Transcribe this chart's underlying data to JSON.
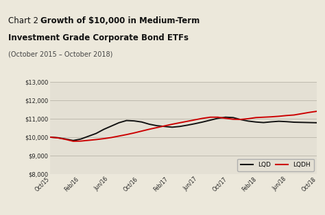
{
  "background_color": "#ece8db",
  "plot_bg_color": "#e4e0d4",
  "header_bar_color": "#7a9e6e",
  "ylim": [
    8000,
    13000
  ],
  "yticks": [
    8000,
    9000,
    10000,
    11000,
    12000,
    13000
  ],
  "ytick_labels": [
    "$8,000",
    "$9,000",
    "$10,000",
    "$11,000",
    "$12,000",
    "$13,000"
  ],
  "xtick_labels": [
    "Oct/15",
    "Feb/16",
    "Jun/16",
    "Oct/16",
    "Feb/17",
    "Jun/17",
    "Oct/17",
    "Feb/18",
    "Jun/18",
    "Oct/18"
  ],
  "lqd_color": "#111111",
  "lqdh_color": "#cc0000",
  "lqd_values": [
    10000,
    9970,
    9900,
    9820,
    9900,
    10050,
    10200,
    10420,
    10600,
    10780,
    10900,
    10880,
    10820,
    10700,
    10620,
    10580,
    10540,
    10580,
    10650,
    10730,
    10820,
    10920,
    11020,
    11080,
    11060,
    10950,
    10870,
    10820,
    10790,
    10830,
    10860,
    10840,
    10810,
    10800,
    10790,
    10780
  ],
  "lqdh_values": [
    10000,
    9960,
    9880,
    9780,
    9790,
    9830,
    9870,
    9920,
    9980,
    10060,
    10140,
    10230,
    10330,
    10430,
    10520,
    10610,
    10700,
    10780,
    10860,
    10940,
    11020,
    11080,
    11080,
    11020,
    10970,
    10960,
    11000,
    11060,
    11080,
    11100,
    11130,
    11170,
    11200,
    11270,
    11340,
    11400
  ]
}
